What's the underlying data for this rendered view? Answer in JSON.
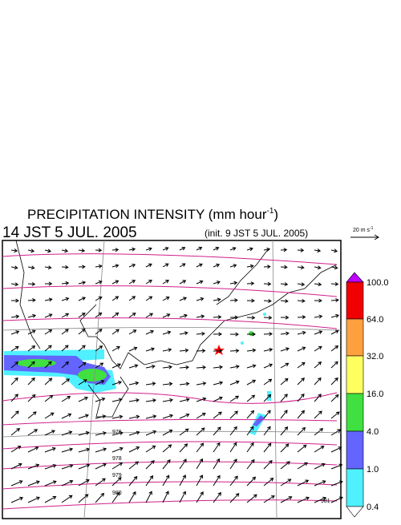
{
  "header": {
    "title": "PRECIPITATION INTENSITY (mm hour",
    "title_sup": "-1",
    "title_end": ")",
    "time": "14 JST 5 JUL. 2005",
    "init": "(init. 9 JST 5 JUL. 2005)"
  },
  "reference_vector": {
    "label": "20 m s",
    "sup": "-1"
  },
  "colorbar": {
    "labels": [
      "100.0",
      "64.0",
      "32.0",
      "16.0",
      "4.0",
      "1.0",
      "0.4"
    ]
  },
  "isobar_labels": [
    "976",
    "978",
    "979",
    "980",
    "981"
  ]
}
